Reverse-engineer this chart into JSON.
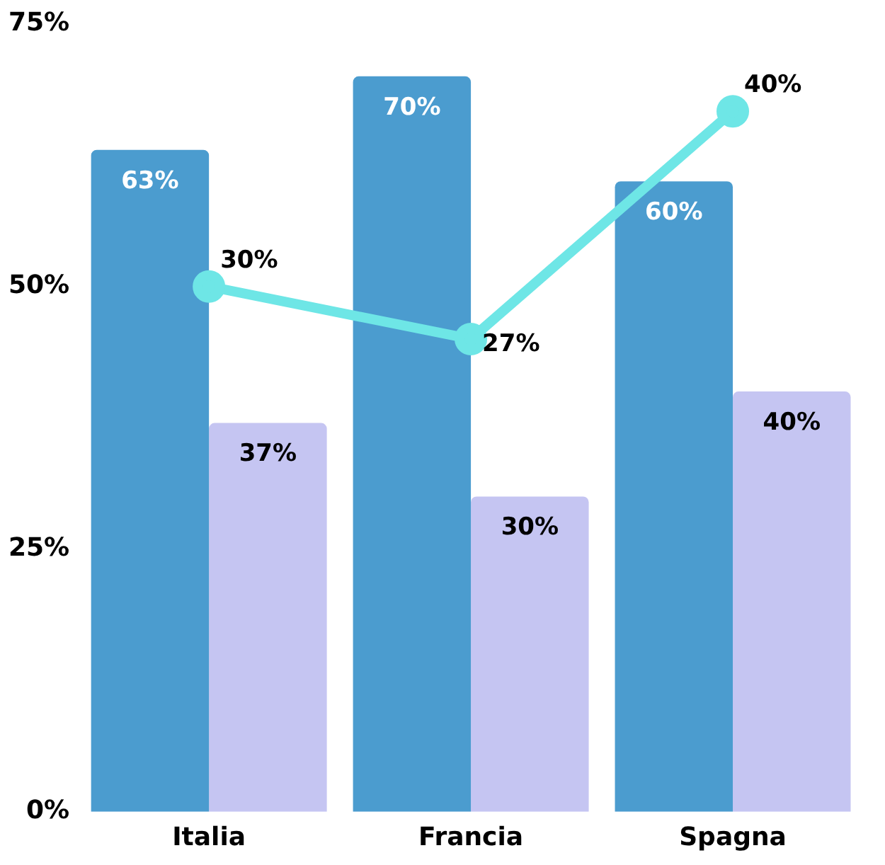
{
  "chart_data": {
    "type": "bar",
    "categories": [
      "Italia",
      "Francia",
      "Spagna"
    ],
    "series": [
      {
        "color": "#4b9ccf",
        "values": [
          63,
          70,
          60
        ],
        "value_labels": [
          "63%",
          "70%",
          "60%"
        ]
      },
      {
        "color": "#c5c5f2",
        "values": [
          37,
          30,
          40
        ],
        "value_labels": [
          "37%",
          "30%",
          "40%"
        ]
      },
      {
        "type": "line",
        "axis": "y2",
        "color": "#6ee6e6",
        "values": [
          30,
          27,
          40
        ],
        "value_labels": [
          "30%",
          "27%",
          "40%"
        ]
      }
    ],
    "ylim": [
      0,
      75
    ],
    "yticks": [
      {
        "value": 0,
        "label": "0%"
      },
      {
        "value": 25,
        "label": "25%"
      },
      {
        "value": 50,
        "label": "50%"
      },
      {
        "value": 75,
        "label": "75%"
      }
    ],
    "grid": false,
    "legend": false,
    "marker": "circle",
    "line_style": "solid"
  }
}
